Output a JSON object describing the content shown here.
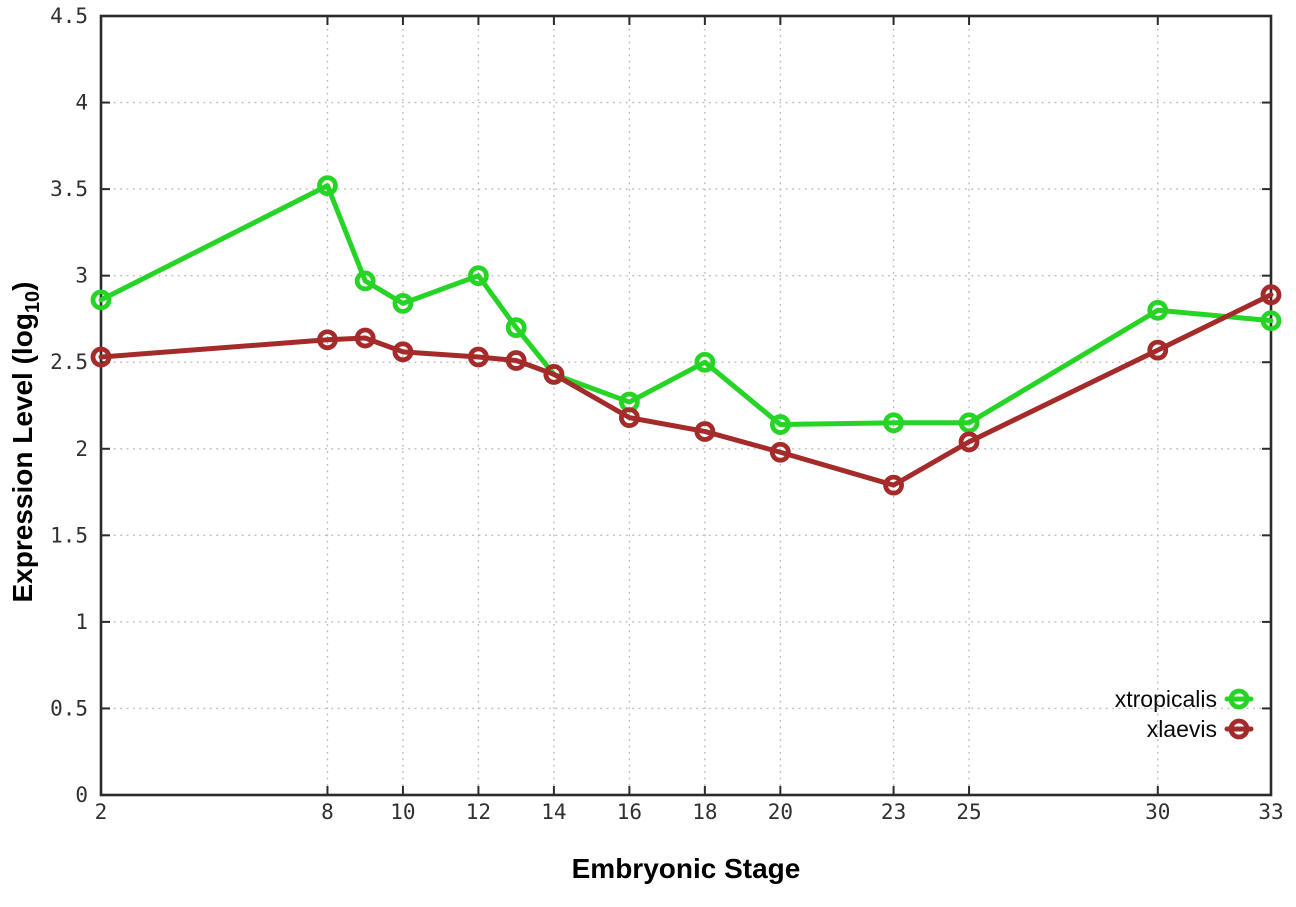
{
  "labels": {
    "xlabel": "Embryonic Stage",
    "ylabel_main": "Expression Level (log",
    "ylabel_sub": "10",
    "ylabel_close": ")"
  },
  "colors": {
    "axis": "#2b2b2b",
    "grid": "#bcbcbc",
    "tick_text": "#303030",
    "label_text": "#000000",
    "background": "#ffffff"
  },
  "chart_data": {
    "type": "line",
    "title": "",
    "xlabel": "Embryonic Stage",
    "ylabel": "Expression Level (log10)",
    "xlim": [
      2,
      33
    ],
    "ylim": [
      0,
      4.5
    ],
    "grid": true,
    "legend_position": "inside-bottom-right",
    "x": [
      2,
      8,
      9,
      10,
      12,
      13,
      14,
      16,
      18,
      20,
      23,
      25,
      30,
      33
    ],
    "xticks": [
      2,
      8,
      10,
      12,
      14,
      16,
      18,
      20,
      23,
      25,
      30,
      33
    ],
    "yticks": [
      0,
      0.5,
      1,
      1.5,
      2,
      2.5,
      3,
      3.5,
      4,
      4.5
    ],
    "series": [
      {
        "name": "xtropicalis",
        "color": "#26d426",
        "marker": "open-circle",
        "values": [
          2.86,
          3.52,
          2.97,
          2.84,
          3.0,
          2.7,
          2.43,
          2.27,
          2.5,
          2.14,
          2.15,
          2.15,
          2.8,
          2.74
        ]
      },
      {
        "name": "xlaevis",
        "color": "#a52a2a",
        "marker": "open-circle",
        "values": [
          2.53,
          2.63,
          2.64,
          2.56,
          2.53,
          2.51,
          2.43,
          2.18,
          2.1,
          1.98,
          1.79,
          2.04,
          2.57,
          2.89
        ]
      }
    ]
  }
}
